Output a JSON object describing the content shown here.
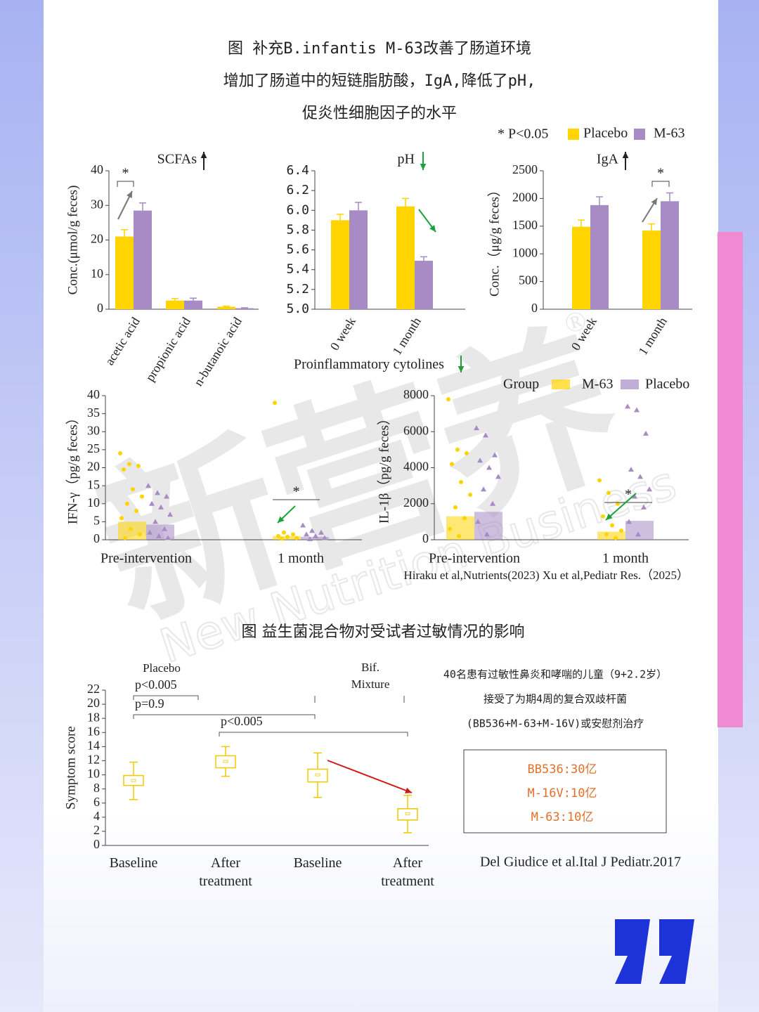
{
  "header": {
    "title_lines": [
      "图 补充B.infantis M-63改善了肠道环境",
      "增加了肠道中的短链脂肪酸，IgA,降低了pH,",
      "促炎性细胞因子的水平"
    ]
  },
  "significance_note": "* P<0.05",
  "section_label": "Proinflammatory cytolines",
  "citation_1": "Hiraku et al,Nutrients(2023) Xu et al,Pediatr Res.（2025）",
  "title_2": "图 益生菌混合物对受试者过敏情况的影响",
  "study": [
    "40名患有过敏性鼻炎和哮喘的儿童（9+2.2岁）",
    "接受了为期4周的复合双歧杆菌",
    "(BB536+M-63+M-16V)或安慰剂治疗"
  ],
  "dose_box": [
    "BB536:30亿",
    "M-16V:10亿",
    "M-63:10亿"
  ],
  "citation_2": "Del Giudice et al.Ital J Pediatr.2017",
  "watermark": [
    "新营养",
    "New Nutrition Business",
    "®"
  ],
  "chart_data": [
    {
      "type": "bar",
      "title": "SCFAs",
      "ylabel": "Conc.(μmol/g feces)",
      "categories": [
        "acetic acid",
        "propionic acid",
        "n-butanoic acid"
      ],
      "series": [
        {
          "name": "Placebo",
          "color": "#ffd400",
          "values": [
            21,
            2.5,
            0.7
          ],
          "errors": [
            2,
            0.6,
            0.2
          ]
        },
        {
          "name": "M-63",
          "color": "#a68bc4",
          "values": [
            28.5,
            2.5,
            0.3
          ],
          "errors": [
            2.2,
            0.7,
            0.1
          ]
        }
      ],
      "ylim": [
        0,
        40
      ],
      "yticks": [
        0,
        10,
        20,
        30,
        40
      ],
      "annotation": "*"
    },
    {
      "type": "bar",
      "title": "pH",
      "ylabel": null,
      "categories": [
        "0 week",
        "1 month"
      ],
      "series": [
        {
          "name": "Placebo",
          "color": "#ffd400",
          "values": [
            5.9,
            6.04
          ],
          "errors": [
            0.06,
            0.08
          ]
        },
        {
          "name": "M-63",
          "color": "#a68bc4",
          "values": [
            6.0,
            5.49
          ],
          "errors": [
            0.08,
            0.04
          ]
        }
      ],
      "ylim": [
        5,
        6.4
      ],
      "yticks": [
        {
          "value": 5,
          "label": "5.0"
        },
        {
          "value": 5.2,
          "label": "5.2"
        },
        {
          "value": 5.4,
          "label": "5.4"
        },
        {
          "value": 5.6,
          "label": "5.6"
        },
        {
          "value": 5.8,
          "label": "5.8"
        },
        {
          "value": 6,
          "label": "6.0"
        },
        {
          "value": 6.2,
          "label": "6.2"
        },
        {
          "value": 6.4,
          "label": "6.4"
        }
      ]
    },
    {
      "type": "bar",
      "title": "IgA",
      "ylabel": "Conc.（μg/g feces）",
      "categories": [
        "0 week",
        "1 month"
      ],
      "series": [
        {
          "name": "Placebo",
          "color": "#ffd400",
          "values": [
            1490,
            1420
          ],
          "errors": [
            120,
            120
          ]
        },
        {
          "name": "M-63",
          "color": "#a68bc4",
          "values": [
            1880,
            1950
          ],
          "errors": [
            150,
            150
          ]
        }
      ],
      "ylim": [
        0,
        2500
      ],
      "yticks": [
        0,
        500,
        1000,
        1500,
        2000,
        2500
      ],
      "annotation": "*"
    },
    {
      "type": "strip",
      "ylabel": "IFN-γ（pg/g feces）",
      "legend_title": "Group",
      "categories": [
        "Pre-intervention",
        "1 month"
      ],
      "series": [
        {
          "name": "M-63",
          "color": "#ffd400",
          "values": [
            5,
            1
          ],
          "points": [
            [
              24,
              21,
              20.5,
              19.5,
              14,
              12,
              10,
              8,
              6,
              3,
              1.5,
              0.5
            ],
            [
              38,
              2,
              1.5,
              1,
              0.8,
              0.5,
              0.3
            ]
          ]
        },
        {
          "name": "Placebo",
          "color": "#a68bc4",
          "values": [
            4.2,
            0.8
          ],
          "points": [
            [
              15,
              13,
              12,
              10,
              9,
              7,
              5,
              3,
              2,
              1,
              0.5
            ],
            [
              4,
              2.5,
              2,
              1.5,
              1,
              0.5,
              0.2
            ]
          ]
        }
      ],
      "ylim": [
        0,
        40
      ],
      "yticks": [
        0,
        5,
        10,
        15,
        20,
        25,
        30,
        35,
        40
      ],
      "annotation": "*"
    },
    {
      "type": "strip",
      "ylabel": "IL-1β（pg/g feces）",
      "categories": [
        "Pre-intervention",
        "1 month"
      ],
      "series": [
        {
          "name": "M-63",
          "color": "#ffd400",
          "values": [
            1300,
            450
          ],
          "points": [
            [
              7800,
              5000,
              4800,
              4200,
              3200,
              2500,
              1800,
              1200,
              600,
              200
            ],
            [
              3300,
              2600,
              2000,
              1300,
              800,
              500,
              300,
              100
            ]
          ]
        },
        {
          "name": "Placebo",
          "color": "#a68bc4",
          "values": [
            1550,
            1050
          ],
          "points": [
            [
              6200,
              5800,
              4700,
              4400,
              4000,
              3500,
              2800,
              2000,
              1000,
              300
            ],
            [
              7400,
              7200,
              5900,
              3900,
              3500,
              2800,
              2400,
              1800,
              1000,
              300
            ]
          ]
        }
      ],
      "ylim": [
        0,
        8000
      ],
      "yticks": [
        0,
        2000,
        4000,
        6000,
        8000
      ],
      "annotation": "*"
    },
    {
      "type": "box",
      "ylabel": "Symptom score",
      "color": "#f0c800",
      "groups": [
        "Placebo",
        "Bif. Mixture"
      ],
      "categories": [
        "Baseline",
        "After treatment",
        "Baseline",
        "After treatment"
      ],
      "low": [
        6.5,
        9.8,
        6.8,
        1.8
      ],
      "q1": [
        8.5,
        11,
        9,
        3.6
      ],
      "median": [
        9.2,
        11.9,
        10,
        4.5
      ],
      "q3": [
        9.9,
        12.7,
        10.8,
        5.2
      ],
      "high": [
        11.8,
        14,
        13.1,
        7.1
      ],
      "comparisons": [
        "p<0.005",
        "p=0.9",
        "p<0.005"
      ],
      "ylim": [
        0,
        22
      ],
      "yticks": [
        0,
        2,
        4,
        6,
        8,
        10,
        12,
        14,
        16,
        18,
        20,
        22
      ]
    }
  ]
}
